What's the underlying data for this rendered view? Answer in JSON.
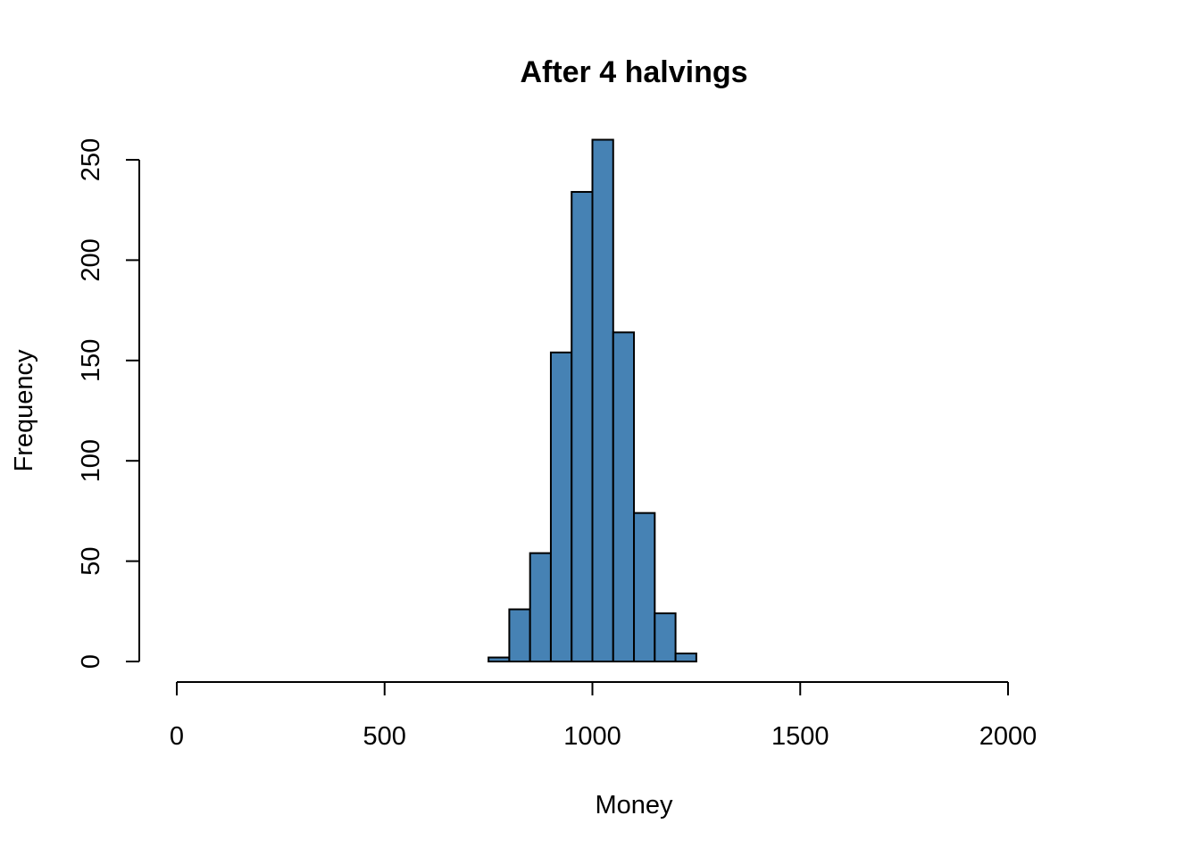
{
  "chart_data": {
    "type": "bar",
    "title": "After 4 halvings",
    "xlabel": "Money",
    "ylabel": "Frequency",
    "xlim": [
      0,
      2000
    ],
    "ylim": [
      0,
      260
    ],
    "x_ticks": [
      0,
      500,
      1000,
      1500,
      2000
    ],
    "y_ticks": [
      0,
      50,
      100,
      150,
      200,
      250
    ],
    "bin_width": 50,
    "bins": [
      {
        "start": 750,
        "end": 800,
        "count": 2
      },
      {
        "start": 800,
        "end": 850,
        "count": 26
      },
      {
        "start": 850,
        "end": 900,
        "count": 54
      },
      {
        "start": 900,
        "end": 950,
        "count": 154
      },
      {
        "start": 950,
        "end": 1000,
        "count": 234
      },
      {
        "start": 1000,
        "end": 1050,
        "count": 260
      },
      {
        "start": 1050,
        "end": 1100,
        "count": 164
      },
      {
        "start": 1100,
        "end": 1150,
        "count": 74
      },
      {
        "start": 1150,
        "end": 1200,
        "count": 24
      },
      {
        "start": 1200,
        "end": 1250,
        "count": 4
      }
    ],
    "bar_color": "#4682b4",
    "grid": false,
    "legend": "none"
  }
}
